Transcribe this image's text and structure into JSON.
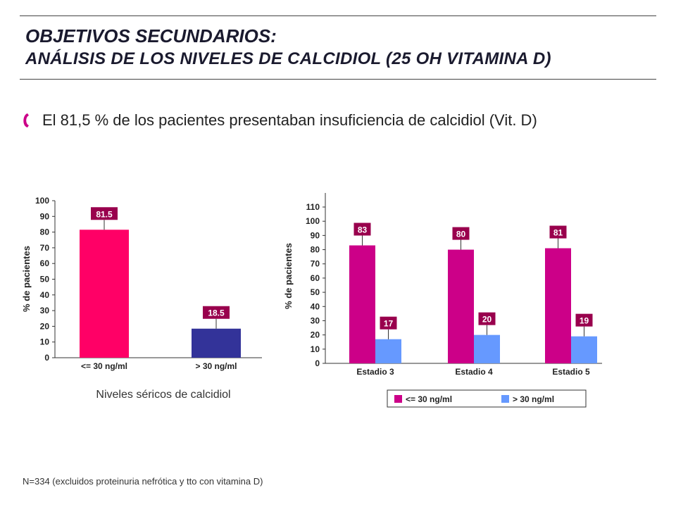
{
  "title": {
    "line1": "OBJETIVOS SECUNDARIOS:",
    "line2": "ANÁLISIS DE LOS NIVELES DE CALCIDIOL (25 OH VITAMINA D)"
  },
  "bullet": {
    "icon": "crescent-bullet-icon",
    "text": "El 81,5 % de los pacientes presentaban insuficiencia de calcidiol (Vit. D)"
  },
  "colors": {
    "title": "#1a1a2e",
    "pink": "#ff0066",
    "navy": "#333399",
    "magenta": "#cc0088",
    "lightblue": "#6699ff",
    "label_box": "#99004d"
  },
  "chart_data": [
    {
      "type": "bar",
      "categories": [
        "<= 30 ng/ml",
        "> 30 ng/ml"
      ],
      "values": [
        81.5,
        18.5
      ],
      "value_labels": [
        "81.5",
        "18.5"
      ],
      "ylabel": "% de pacientes",
      "ylim": [
        0,
        100
      ],
      "yticks": [
        0,
        10,
        20,
        30,
        40,
        50,
        60,
        70,
        80,
        90,
        100
      ],
      "caption": "Niveles séricos de calcidiol",
      "grid": false
    },
    {
      "type": "bar",
      "categories": [
        "Estadio 3",
        "Estadio 4",
        "Estadio 5"
      ],
      "series": [
        {
          "name": "<= 30 ng/ml",
          "values": [
            83,
            80,
            81
          ]
        },
        {
          "name": "> 30 ng/ml",
          "values": [
            17,
            20,
            19
          ]
        }
      ],
      "ylabel": "% de pacientes",
      "ylim": [
        0,
        110
      ],
      "yticks": [
        0,
        10,
        20,
        30,
        40,
        50,
        60,
        70,
        80,
        90,
        100,
        110
      ],
      "legend_position": "bottom",
      "grid": false
    }
  ],
  "footnote": "N=334 (excluidos proteinuria nefrótica y tto con vitamina D)"
}
